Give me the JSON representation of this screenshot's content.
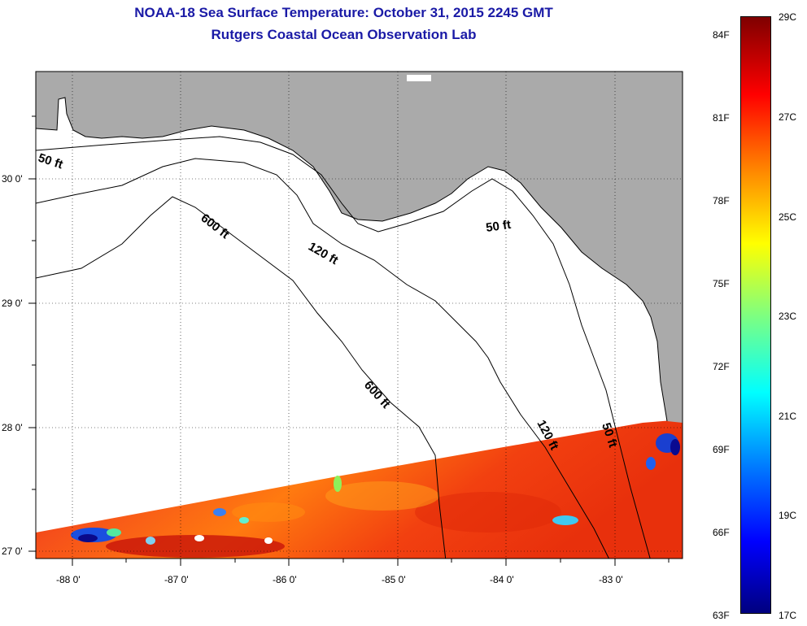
{
  "title": "NOAA-18 Sea Surface Temperature:  October 31, 2015 2245 GMT",
  "subtitle": "Rutgers Coastal Ocean Observation Lab",
  "map": {
    "lat_labels": [
      "30 0'",
      "29 0'",
      "28 0'",
      "27 0'"
    ],
    "lon_labels": [
      "-88 0'",
      "-87 0'",
      "-86 0'",
      "-85 0'",
      "-84 0'",
      "-83 0'"
    ],
    "contour_labels": {
      "c50_west": "50 ft",
      "c600_north": "600 ft",
      "c120_north": "120 ft",
      "c50_east": "50 ft",
      "c600_south": "600 ft",
      "c120_south": "120 ft",
      "c50_south": "50 ft"
    }
  },
  "colorbar": {
    "fahrenheit": [
      "84F",
      "81F",
      "78F",
      "75F",
      "72F",
      "69F",
      "66F",
      "63F"
    ],
    "celsius": [
      "29C",
      "27C",
      "25C",
      "23C",
      "21C",
      "19C",
      "17C"
    ]
  },
  "colors": {
    "land": "#aaaaaa",
    "ocean_no_data": "#ffffff",
    "sst_warm": "#f23a0c",
    "title": "#1a1aa6"
  }
}
